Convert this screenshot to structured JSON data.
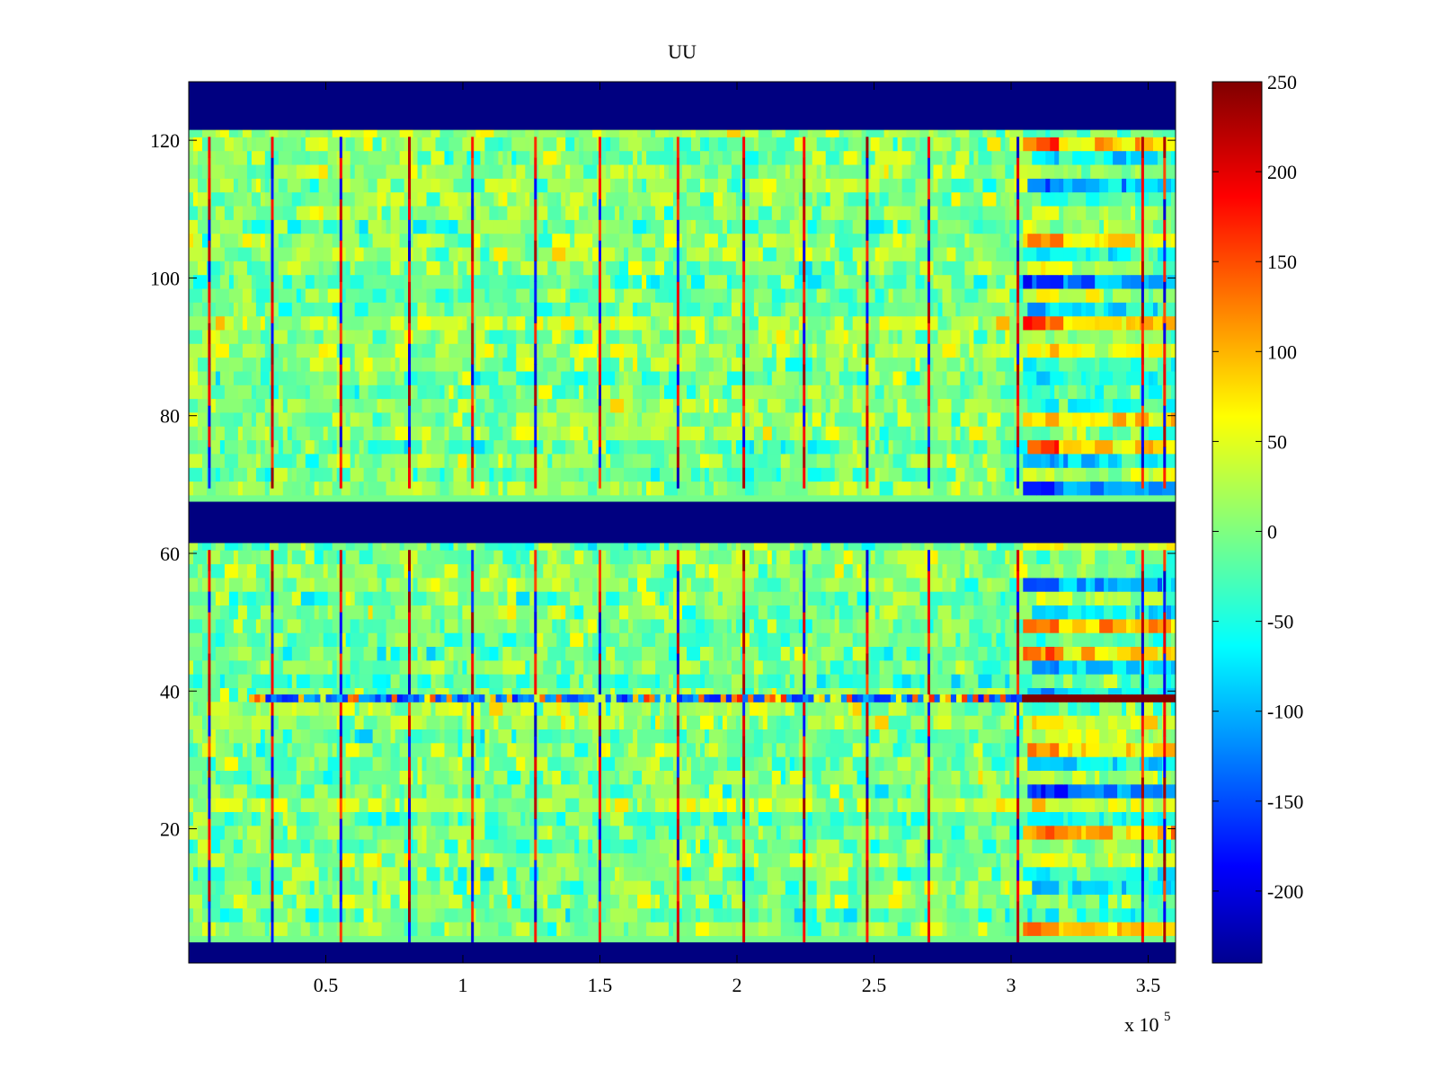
{
  "chart_data": {
    "type": "heatmap",
    "title": "UU",
    "xlabel": "",
    "ylabel": "",
    "x_multiplier_label": "x 10",
    "x_multiplier_exponent": "5",
    "xlim": [
      0,
      3.6
    ],
    "ylim": [
      0.5,
      128.5
    ],
    "xticks": [
      {
        "value": 0.5,
        "label": "0.5"
      },
      {
        "value": 1,
        "label": "1"
      },
      {
        "value": 1.5,
        "label": "1.5"
      },
      {
        "value": 2,
        "label": "2"
      },
      {
        "value": 2.5,
        "label": "2.5"
      },
      {
        "value": 3,
        "label": "3"
      },
      {
        "value": 3.5,
        "label": "3.5"
      }
    ],
    "yticks": [
      {
        "value": 20,
        "label": "20"
      },
      {
        "value": 40,
        "label": "40"
      },
      {
        "value": 60,
        "label": "60"
      },
      {
        "value": 80,
        "label": "80"
      },
      {
        "value": 100,
        "label": "100"
      },
      {
        "value": 120,
        "label": "120"
      }
    ],
    "colorbar": {
      "colormap": "jet",
      "clim": [
        -240,
        250
      ],
      "ticks": [
        {
          "value": 250,
          "label": "250"
        },
        {
          "value": 200,
          "label": "200"
        },
        {
          "value": 150,
          "label": "150"
        },
        {
          "value": 100,
          "label": "100"
        },
        {
          "value": 50,
          "label": "50"
        },
        {
          "value": 0,
          "label": "0"
        },
        {
          "value": -50,
          "label": "-50"
        },
        {
          "value": -100,
          "label": "-100"
        },
        {
          "value": -150,
          "label": "-150"
        },
        {
          "value": -200,
          "label": "-200"
        }
      ]
    },
    "background_value": 0,
    "masked_rows": [
      {
        "from": 0.5,
        "to": 3.5,
        "value": -240
      },
      {
        "from": 61.5,
        "to": 67.5,
        "value": -240
      },
      {
        "from": 121.5,
        "to": 128.5,
        "value": -240
      }
    ],
    "vertical_spikes_x": [
      0.075,
      0.305,
      0.555,
      0.805,
      1.035,
      1.265,
      1.5,
      1.785,
      2.025,
      2.245,
      2.475,
      2.7,
      3.025,
      3.48,
      3.56
    ],
    "anomaly_row": {
      "y": 39,
      "x_from": 0.22,
      "x_to": 3.6,
      "strong_from": 3.03,
      "strong_value": 250
    },
    "anomaly_region": {
      "x_from": 3.03,
      "x_to": 3.6
    }
  }
}
